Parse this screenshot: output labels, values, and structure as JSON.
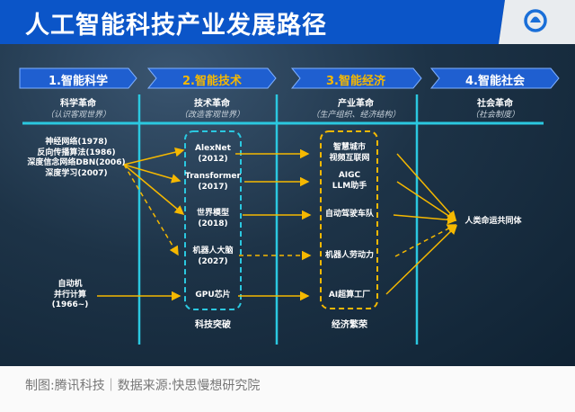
{
  "title": "人工智能科技产业发展路径",
  "logo": "tencent-news-logo",
  "colors": {
    "header": "#0b55c8",
    "accent_yellow": "#f5b800",
    "cyan": "#2bc8e0",
    "banner": "#1f5fd0"
  },
  "stages": [
    {
      "label": "1.智能科学",
      "header": "科学革命",
      "sub": "（认识客观世界）",
      "highlight": false
    },
    {
      "label": "2.智能技术",
      "header": "技术革命",
      "sub": "（改造客观世界）",
      "highlight": true
    },
    {
      "label": "3.智能经济",
      "header": "产业革命",
      "sub": "（生产组织、经济结构）",
      "highlight": true
    },
    {
      "label": "4.智能社会",
      "header": "社会革命",
      "sub": "（社会制度）",
      "highlight": false
    }
  ],
  "science": {
    "group1": [
      "神经网络(1978)",
      "反向传播算法(1986)",
      "深度信念网络DBN(2006)",
      "深度学习(2007)"
    ],
    "group2": [
      "自动机",
      "并行计算",
      "(1966~)"
    ]
  },
  "tech": {
    "items": [
      [
        "AlexNet",
        "(2012)"
      ],
      [
        "Transformer",
        "(2017)"
      ],
      [
        "世界模型",
        "(2018)"
      ],
      [
        "机器人大脑",
        "(2027)"
      ],
      [
        "GPU芯片"
      ]
    ],
    "caption": "科技突破"
  },
  "economy": {
    "items": [
      [
        "智慧城市",
        "视频互联网"
      ],
      [
        "AIGC",
        "LLM助手"
      ],
      [
        "自动驾驶车队"
      ],
      [
        "机器人劳动力"
      ],
      [
        "AI超算工厂"
      ]
    ],
    "caption": "经济繁荣"
  },
  "society": {
    "item": "人类命运共同体"
  },
  "footer": "制图:腾讯科技｜数据来源:快思慢想研究院"
}
